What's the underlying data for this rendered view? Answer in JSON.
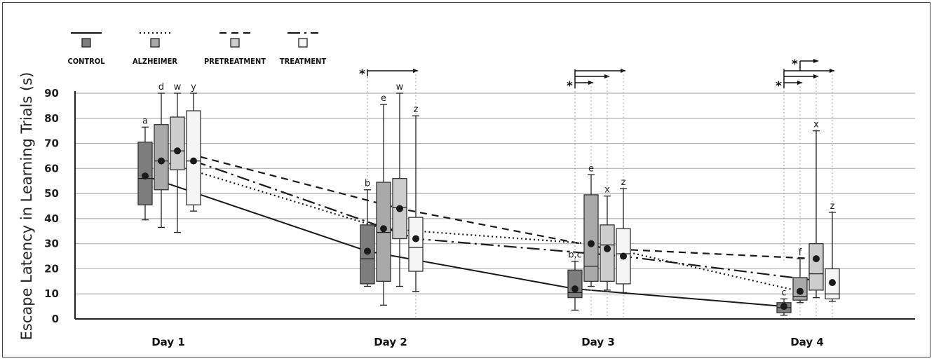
{
  "chart_data": {
    "type": "box",
    "ylabel": "Escape Latency in Learning Trials (s)",
    "ylim": [
      0,
      90
    ],
    "yticks": [
      0,
      10,
      20,
      30,
      40,
      50,
      60,
      70,
      80,
      90
    ],
    "grid": true,
    "categories": [
      "Day 1",
      "Day 2",
      "Day 3",
      "Day 4"
    ],
    "legend_position": "top-left",
    "series": [
      {
        "name": "CONTROL",
        "fill": "#7d7d7d",
        "line_style": "solid",
        "boxes": [
          {
            "min": 39.5,
            "q1": 45.5,
            "median": 56,
            "q3": 70.5,
            "max": 76.5,
            "mean": 57,
            "letter": "a"
          },
          {
            "min": 13,
            "q1": 14,
            "median": 24,
            "q3": 37.5,
            "max": 51.5,
            "mean": 27,
            "letter": "b"
          },
          {
            "min": 3.5,
            "q1": 8.5,
            "median": 10.5,
            "q3": 19.5,
            "max": 23,
            "mean": 12,
            "letter": "b,c"
          },
          {
            "min": 1.5,
            "q1": 2.5,
            "median": 4.5,
            "q3": 6.5,
            "max": 8,
            "mean": 5,
            "letter": "c"
          }
        ]
      },
      {
        "name": "ALZHEIMER",
        "fill": "#a9a9a9",
        "line_style": "dotted",
        "boxes": [
          {
            "min": 36.5,
            "q1": 51.5,
            "median": 63,
            "q3": 77.5,
            "max": 90,
            "mean": 63,
            "letter": "d"
          },
          {
            "min": 5.5,
            "q1": 15,
            "median": 34.5,
            "q3": 54.5,
            "max": 85.5,
            "mean": 36,
            "letter": "e"
          },
          {
            "min": 13,
            "q1": 15,
            "median": 21,
            "q3": 49.5,
            "max": 57.5,
            "mean": 30,
            "letter": "e"
          },
          {
            "min": 6.5,
            "q1": 7.5,
            "median": 9,
            "q3": 16.5,
            "max": 24,
            "mean": 11,
            "letter": "f"
          }
        ]
      },
      {
        "name": "PRETREATMENT",
        "fill": "#cdcdcd",
        "line_style": "dashed",
        "boxes": [
          {
            "min": 34.5,
            "q1": 59.5,
            "median": 67,
            "q3": 80.5,
            "max": 90,
            "mean": 67,
            "letter": "w"
          },
          {
            "min": 13,
            "q1": 32,
            "median": 44.5,
            "q3": 56,
            "max": 90,
            "mean": 44,
            "letter": "w"
          },
          {
            "min": 11.5,
            "q1": 15,
            "median": 29.5,
            "q3": 37.5,
            "max": 49,
            "mean": 28,
            "letter": "x"
          },
          {
            "min": 8.5,
            "q1": 11.5,
            "median": 18,
            "q3": 30,
            "max": 75,
            "mean": 24,
            "letter": "x"
          }
        ]
      },
      {
        "name": "TREATMENT",
        "fill": "#f5f5f5",
        "line_style": "dash-dot",
        "boxes": [
          {
            "min": 43,
            "q1": 45.5,
            "median": 63,
            "q3": 83,
            "max": 90,
            "mean": 63,
            "letter": "y"
          },
          {
            "min": 11,
            "q1": 19,
            "median": 28.5,
            "q3": 40.5,
            "max": 81,
            "mean": 32,
            "letter": "z"
          },
          {
            "min": 10.5,
            "q1": 14,
            "median": 26,
            "q3": 36,
            "max": 52,
            "mean": 25,
            "letter": "z"
          },
          {
            "min": 7,
            "q1": 8,
            "median": 10,
            "q3": 20,
            "max": 42.5,
            "mean": 14.5,
            "letter": "z"
          }
        ]
      }
    ],
    "significance": [
      {
        "category": "Day 2",
        "label": "*",
        "from": "CONTROL",
        "to": [
          "TREATMENT"
        ]
      },
      {
        "category": "Day 3",
        "label": "*",
        "from": "CONTROL",
        "to": [
          "ALZHEIMER",
          "PRETREATMENT",
          "TREATMENT"
        ]
      },
      {
        "category": "Day 4",
        "label": "*",
        "from": "CONTROL",
        "to": [
          "ALZHEIMER",
          "PRETREATMENT",
          "TREATMENT"
        ]
      },
      {
        "category": "Day 4",
        "label": "*",
        "from": "ALZHEIMER",
        "to": [
          "PRETREATMENT"
        ]
      }
    ],
    "colors": {
      "grid": "#b0b0b0",
      "axis": "#222222",
      "mean_dot": "#1a1a1a"
    }
  }
}
